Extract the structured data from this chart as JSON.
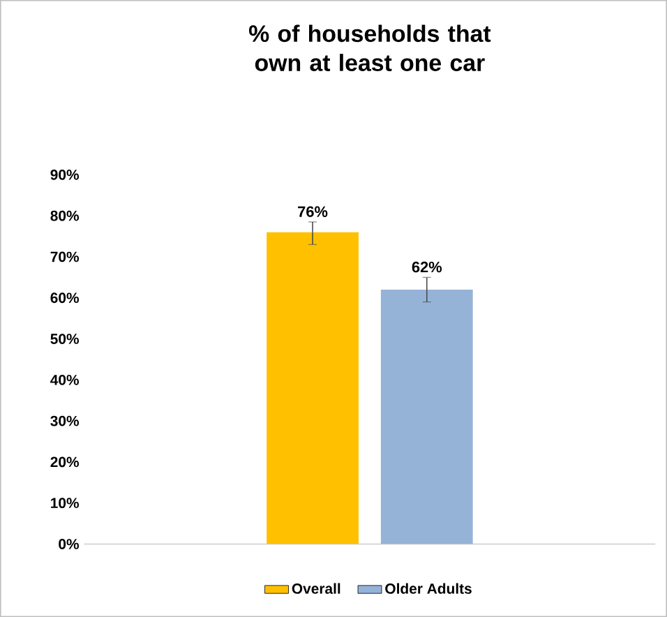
{
  "chart_data": {
    "type": "bar",
    "title": "% of households that own at least one car",
    "categories": [
      null
    ],
    "series": [
      {
        "name": "Overall",
        "color": "#ffc000",
        "values": [
          76
        ],
        "errors": [
          [
            73,
            78.5
          ]
        ],
        "value_labels": [
          "76%"
        ]
      },
      {
        "name": "Older Adults",
        "color": "#95b3d7",
        "values": [
          62
        ],
        "errors": [
          [
            59,
            65
          ]
        ],
        "value_labels": [
          "62%"
        ]
      }
    ],
    "ylim": [
      0,
      90
    ],
    "yticks": [
      {
        "value": 0,
        "label": "0%"
      },
      {
        "value": 10,
        "label": "10%"
      },
      {
        "value": 20,
        "label": "20%"
      },
      {
        "value": 30,
        "label": "30%"
      },
      {
        "value": 40,
        "label": "40%"
      },
      {
        "value": 50,
        "label": "50%"
      },
      {
        "value": 60,
        "label": "60%"
      },
      {
        "value": 70,
        "label": "70%"
      },
      {
        "value": 80,
        "label": "80%"
      },
      {
        "value": 90,
        "label": "90%"
      }
    ],
    "grid": false,
    "legend": "bottom"
  }
}
